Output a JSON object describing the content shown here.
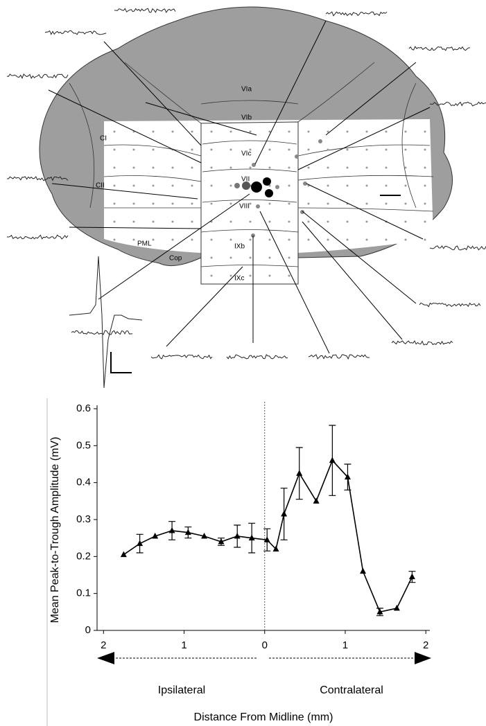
{
  "diagram": {
    "labels": [
      "VIa",
      "VIb",
      "VIc",
      "VII",
      "VIII",
      "IXb",
      "IXc",
      "CI",
      "CII",
      "PML",
      "Cop"
    ]
  },
  "chart_data": {
    "type": "line",
    "ylabel": "Mean Peak-to-Trough Amplitude  (mV)",
    "xlabel": "Distance From Midline (mm)",
    "annotations": [
      "Ipsilateral",
      "Contralateral"
    ],
    "color": "#000000",
    "marker": "triangle",
    "x": [
      -1.75,
      -1.55,
      -1.36,
      -1.15,
      -0.95,
      -0.75,
      -0.54,
      -0.34,
      -0.16,
      0.03,
      0.14,
      0.24,
      0.43,
      0.64,
      0.84,
      1.03,
      1.22,
      1.43,
      1.64,
      1.83
    ],
    "values": [
      0.205,
      0.235,
      0.255,
      0.27,
      0.265,
      0.255,
      0.24,
      0.255,
      0.25,
      0.245,
      0.22,
      0.315,
      0.425,
      0.35,
      0.46,
      0.415,
      0.16,
      0.05,
      0.06,
      0.145
    ],
    "errors": [
      null,
      0.025,
      null,
      0.025,
      0.015,
      null,
      0.01,
      0.03,
      0.04,
      0.03,
      null,
      0.07,
      0.07,
      null,
      0.095,
      0.035,
      null,
      0.01,
      null,
      0.015
    ],
    "xlim": [
      -2.08,
      2.05
    ],
    "xticks": [
      {
        "value": -2,
        "label": "2"
      },
      {
        "value": -1,
        "label": "1"
      },
      0,
      1,
      2
    ],
    "ylim": [
      0,
      0.6
    ],
    "yticks": [
      0,
      0.1,
      0.2,
      0.3,
      0.4,
      0.5,
      0.6
    ]
  }
}
